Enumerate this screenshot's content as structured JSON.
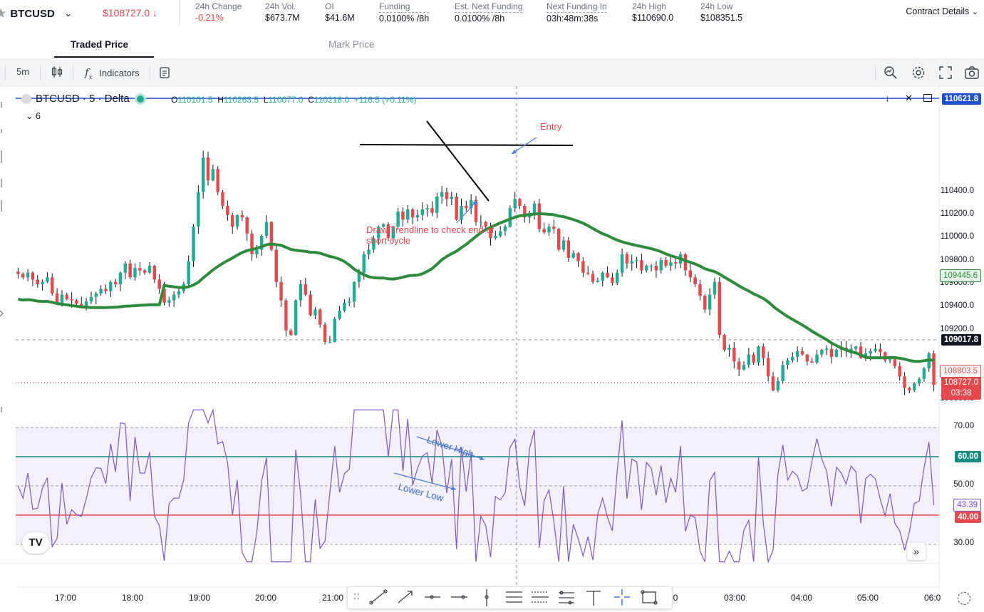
{
  "header": {
    "symbol": "BTCUSD",
    "last_price": "$108727.0 ↓",
    "stats": [
      {
        "label": "24h Change",
        "value": "-0.21%"
      },
      {
        "label": "24h Vol.",
        "value": "$673.7M"
      },
      {
        "label": "OI",
        "value": "$41.6M"
      },
      {
        "label": "Funding",
        "value": "0.0100% /8h"
      },
      {
        "label": "Est. Next Funding",
        "value": "0.0100% /8h"
      },
      {
        "label": "Next Funding In",
        "value": "03h:48m:38s"
      },
      {
        "label": "24h High",
        "value": "$110690.0"
      },
      {
        "label": "24h Low",
        "value": "$108351.5"
      }
    ],
    "contract_details": "Contract Details"
  },
  "tabs": [
    {
      "label": "Traded Price",
      "active": true
    },
    {
      "label": "Mark Price",
      "active": false
    }
  ],
  "toolbar": {
    "interval": "5m",
    "indicators": "Indicators"
  },
  "chart": {
    "legend_title": "BTCUSD · 5 · Delta",
    "ohlc": {
      "o_label": "O",
      "o": "110101.5",
      "h_label": "H",
      "h": "110263.5",
      "l_label": "L",
      "l": "110077.0",
      "c_label": "C",
      "c": "110218.0",
      "chg": "+116.5 (+0.11%)"
    },
    "collapse_count": "6",
    "annotations": {
      "entry": "Entry",
      "trendline_note": "Draw Trendline to check end of short cycle",
      "lower_high": "Lower High",
      "lower_low": "Lower Low"
    },
    "price_labels": {
      "top_line": "110621.8",
      "ma": "109445.6",
      "crosshair": "109017.8",
      "dotted": "108803.5",
      "last": "108727.0",
      "countdown": "03:38",
      "rsi_60": "60.00",
      "rsi_40": "40.00",
      "rsi_val": "43.39"
    },
    "colors": {
      "up": "#22ab94",
      "down": "#e5484d",
      "ma": "#2e8b3d",
      "rsi": "#7e57c2",
      "blue": "#2962ff"
    }
  },
  "chart_data": {
    "type": "candlestick",
    "x_ticks": [
      "17:00",
      "18:00",
      "19:00",
      "20:00",
      "21:00",
      "2:00",
      "03:00",
      "04:00",
      "05:00",
      "06:0"
    ],
    "y_ticks": [
      110400,
      110200,
      110000,
      109800,
      109600,
      109400,
      109200,
      108600
    ],
    "y_tick_labels": [
      "110400.0",
      "110200.0",
      "110000.0",
      "109800.0",
      "109600.0",
      "109400.0",
      "109200.0",
      "108600.0"
    ],
    "ylim": [
      108450,
      110700
    ],
    "close_series": [
      109690,
      109660,
      109700,
      109640,
      109600,
      109620,
      109660,
      109520,
      109440,
      109510,
      109470,
      109460,
      109430,
      109410,
      109450,
      109490,
      109520,
      109560,
      109540,
      109620,
      109600,
      109700,
      109780,
      109660,
      109740,
      109720,
      109700,
      109760,
      109640,
      109560,
      109440,
      109460,
      109510,
      109540,
      109600,
      109800,
      110100,
      110400,
      110700,
      110500,
      110600,
      110400,
      110280,
      110200,
      110100,
      110200,
      110180,
      110040,
      109860,
      109900,
      110020,
      110140,
      109900,
      109620,
      109460,
      109200,
      109160,
      109460,
      109600,
      109510,
      109330,
      109380,
      109250,
      109100,
      109100,
      109300,
      109370,
      109440,
      109450,
      109620,
      109700,
      109860,
      109900,
      110000,
      110100,
      110120,
      110000,
      110100,
      110230,
      110160,
      110250,
      110180,
      110200,
      110250,
      110260,
      110220,
      110360,
      110400,
      110340,
      110360,
      110160,
      110280,
      110260,
      110330,
      110140,
      110140,
      110100,
      110000,
      110020,
      110060,
      110100,
      110260,
      110340,
      110280,
      110180,
      110220,
      110300,
      110080,
      110050,
      110100,
      110080,
      109900,
      109980,
      109830,
      109870,
      109800,
      109700,
      109690,
      109620,
      109630,
      109700,
      109660,
      109610,
      109700,
      109860,
      109780,
      109800,
      109810,
      109720,
      109760,
      109760,
      109720,
      109810,
      109760,
      109790,
      109780,
      109860,
      109720,
      109660,
      109600,
      109500,
      109380,
      109510,
      109620,
      109160,
      109030,
      109050,
      108930,
      108860,
      108900,
      108990,
      108920,
      109060,
      108960,
      108800,
      108680,
      108760,
      108900,
      108940,
      108970,
      109020,
      108990,
      108930,
      108920,
      108990,
      109030,
      109040,
      108970,
      109030,
      109050,
      109020,
      109040,
      109060,
      108960,
      109000,
      109020,
      109040,
      109010,
      108940,
      108950,
      108890,
      108800,
      108700,
      108680,
      108740,
      108780,
      108870,
      109000,
      108727
    ],
    "ma_label": "109445.6",
    "rsi": {
      "y_ticks": [
        70,
        50,
        30
      ],
      "y_tick_labels": [
        "70.00",
        "50.00",
        "30.00"
      ],
      "levels": [
        60,
        40
      ],
      "last": 43.39
    }
  }
}
